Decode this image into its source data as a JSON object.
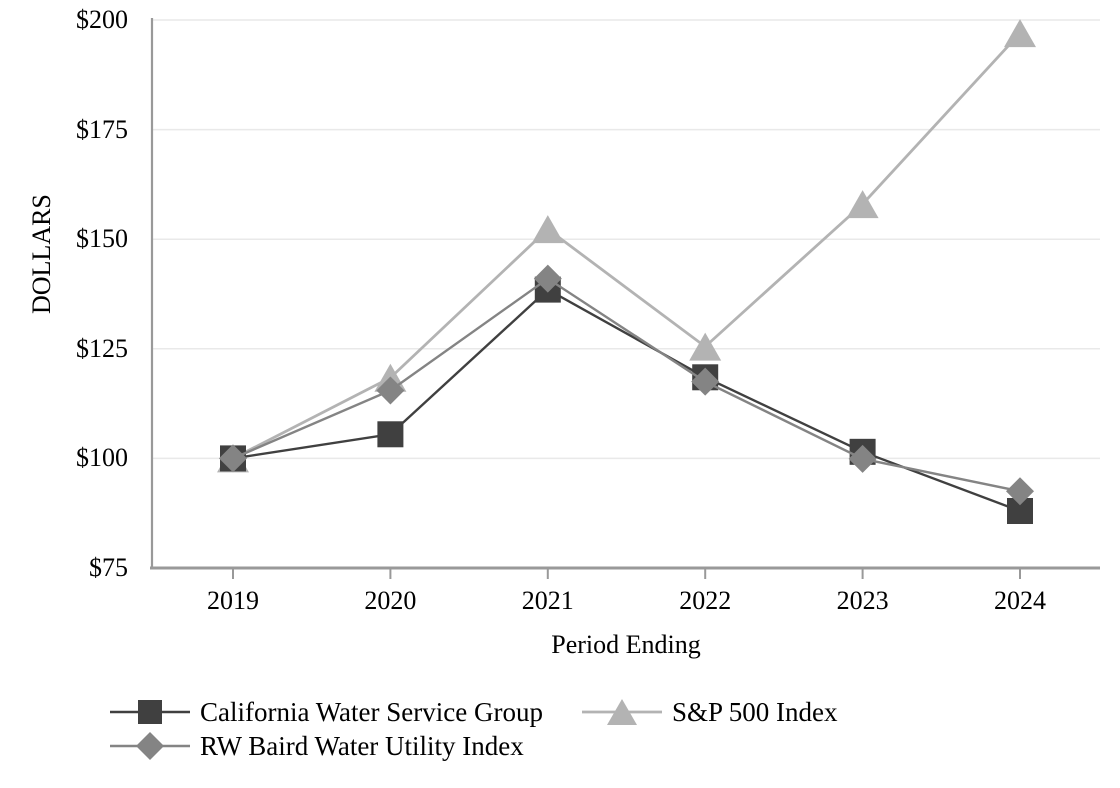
{
  "chart_data": {
    "type": "line",
    "title": "",
    "xlabel": "Period Ending",
    "ylabel": "DOLLARS",
    "categories": [
      "2019",
      "2020",
      "2021",
      "2022",
      "2023",
      "2024"
    ],
    "series": [
      {
        "name": "California Water Service Group",
        "marker": "square",
        "color": "#404040",
        "line_width": 2.4,
        "values": [
          100,
          105.5,
          138.5,
          118.5,
          101.5,
          88
        ]
      },
      {
        "name": "RW Baird Water Utility Index",
        "marker": "diamond",
        "color": "#848484",
        "line_width": 2.4,
        "values": [
          100,
          115.5,
          141,
          117.5,
          99.9,
          92.5
        ]
      },
      {
        "name": "S&P 500 Index",
        "marker": "triangle",
        "color": "#b3b3b3",
        "line_width": 2.8,
        "values": [
          100,
          118.4,
          152.3,
          125.5,
          158,
          197
        ]
      }
    ],
    "ylim": [
      75,
      200
    ],
    "ytick_step": 25,
    "ytick_labels": [
      "$75",
      "$100",
      "$125",
      "$150",
      "$175",
      "$200"
    ],
    "grid": "horizontal",
    "legend_position": "bottom-left"
  },
  "theme": {
    "background": "#ffffff",
    "text_color": "#000000",
    "grid_color": "#e9e9e9",
    "axis_color": "#999999"
  }
}
